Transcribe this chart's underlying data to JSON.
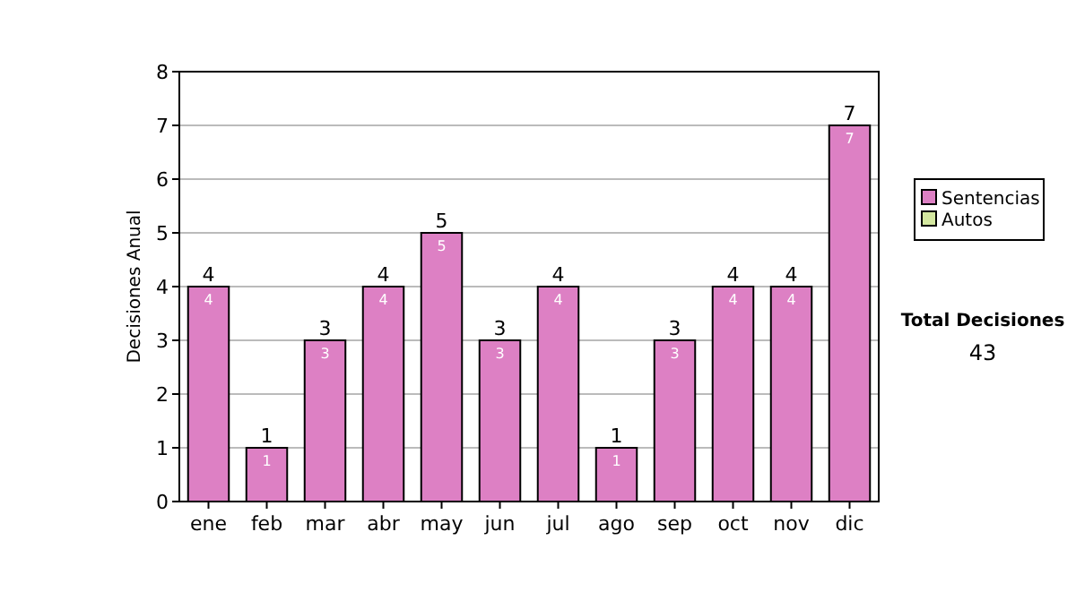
{
  "chart_data": {
    "type": "bar",
    "ylabel": "Decisiones Anual",
    "categories": [
      "ene",
      "feb",
      "mar",
      "abr",
      "may",
      "jun",
      "jul",
      "ago",
      "sep",
      "oct",
      "nov",
      "dic"
    ],
    "stacked": true,
    "series": [
      {
        "name": "Sentencias",
        "color": "#dd80c4",
        "values": [
          4,
          1,
          3,
          4,
          5,
          3,
          4,
          1,
          3,
          4,
          4,
          7
        ],
        "value_labels": [
          "4",
          "1",
          "3",
          "4",
          "5",
          "3",
          "4",
          "1",
          "3",
          "4",
          "4",
          "7"
        ]
      },
      {
        "name": "Autos",
        "color": "#d4e8a0",
        "values": [
          0,
          0,
          0,
          0,
          0,
          0,
          0,
          0,
          0,
          0,
          0,
          0
        ]
      }
    ],
    "totals": [
      "4",
      "1",
      "3",
      "4",
      "5",
      "3",
      "4",
      "1",
      "3",
      "4",
      "4",
      "7"
    ],
    "ylim": [
      0,
      8
    ],
    "yticks": [
      0,
      1,
      2,
      3,
      4,
      5,
      6,
      7,
      8
    ],
    "grid": "y",
    "legend": "right",
    "annotations": [
      "Total Decisiones",
      "43"
    ]
  }
}
